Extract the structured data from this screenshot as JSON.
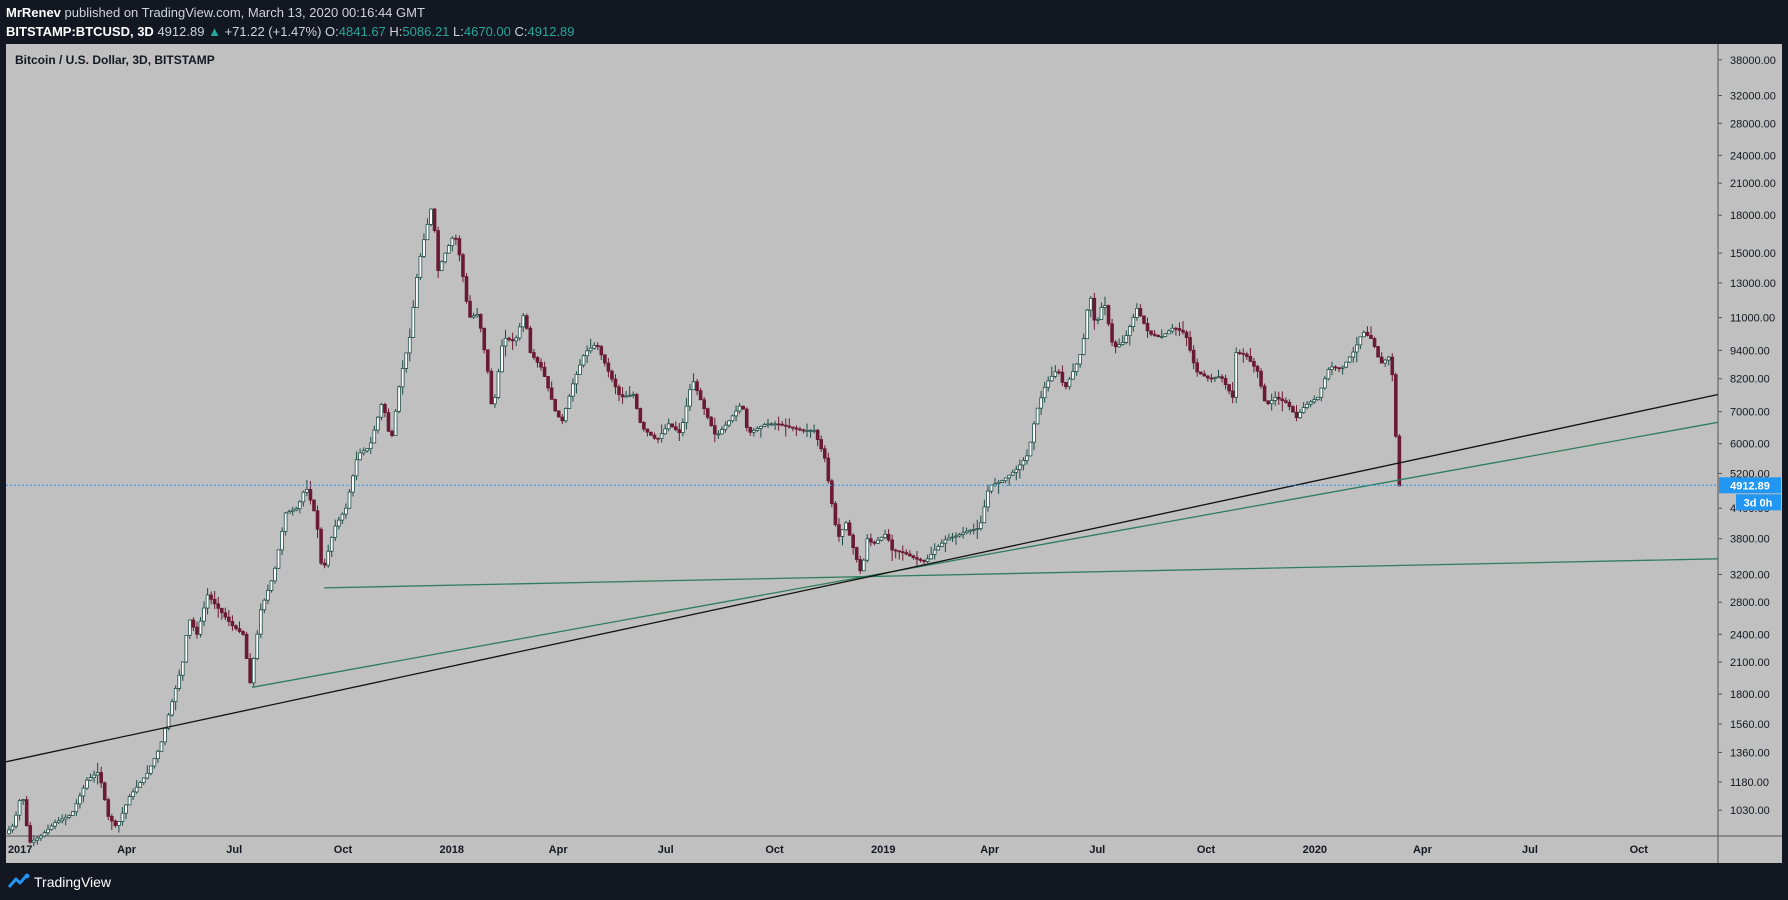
{
  "header": {
    "author": "MrRenev",
    "published_text": "published on TradingView.com, March 13, 2020 00:16:44 GMT",
    "symbol": "BITSTAMP:BTCUSD, 3D",
    "last_price": "4912.89",
    "change_arrow": "▲",
    "change": "+71.22 (+1.47%)",
    "open_label": "O:",
    "open_value": "4841.67",
    "high_label": "H:",
    "high_value": "5086.21",
    "low_label": "L:",
    "low_value": "4670.00",
    "close_label": "C:",
    "close_value": "4912.89"
  },
  "footer": {
    "brand": "TradingView",
    "brand_icon": "tradingview-logo-icon"
  },
  "colors": {
    "background": "#131722",
    "plot_background": "#c0c0c0",
    "up_candle": "#1e4d45",
    "down_candle": "#6b1a34",
    "green_line": "#2e7d5b",
    "black_line": "#111111",
    "price_line": "#2196f3",
    "price_badge": "#2196f3"
  },
  "chart_data": {
    "type": "candlestick",
    "title": "Bitcoin / U.S. Dollar, 3D, BITSTAMP",
    "y_scale": "log",
    "ylim": [
      910,
      41000
    ],
    "y_ticks": [
      1030,
      1180,
      1360,
      1560,
      1800,
      2100,
      2400,
      2800,
      3200,
      3800,
      4400,
      5200,
      6000,
      7000,
      8200,
      9400,
      11000,
      13000,
      15000,
      18000,
      21000,
      24000,
      28000,
      32000,
      38000
    ],
    "y_tick_labels": [
      "1030.00",
      "1180.00",
      "1360.00",
      "1560.00",
      "1800.00",
      "2100.00",
      "2400.00",
      "2800.00",
      "3200.00",
      "3800.00",
      "4400.00",
      "5200.00",
      "6000.00",
      "7000.00",
      "8200.00",
      "9400.00",
      "11000.00",
      "13000.00",
      "15000.00",
      "18000.00",
      "21000.00",
      "24000.00",
      "28000.00",
      "32000.00",
      "38000.00"
    ],
    "xlim": [
      "2016-12-20",
      "2020-12-07"
    ],
    "x_ticks": [
      {
        "date": "2017-01-01",
        "label": "2017",
        "bold": true
      },
      {
        "date": "2017-04-01",
        "label": "Apr",
        "bold": false
      },
      {
        "date": "2017-07-01",
        "label": "Jul",
        "bold": false
      },
      {
        "date": "2017-10-01",
        "label": "Oct",
        "bold": false
      },
      {
        "date": "2018-01-01",
        "label": "2018",
        "bold": true
      },
      {
        "date": "2018-04-01",
        "label": "Apr",
        "bold": false
      },
      {
        "date": "2018-07-01",
        "label": "Jul",
        "bold": false
      },
      {
        "date": "2018-10-01",
        "label": "Oct",
        "bold": false
      },
      {
        "date": "2019-01-01",
        "label": "2019",
        "bold": true
      },
      {
        "date": "2019-04-01",
        "label": "Apr",
        "bold": false
      },
      {
        "date": "2019-07-01",
        "label": "Jul",
        "bold": false
      },
      {
        "date": "2019-10-01",
        "label": "Oct",
        "bold": false
      },
      {
        "date": "2020-01-01",
        "label": "2020",
        "bold": true
      },
      {
        "date": "2020-04-01",
        "label": "Apr",
        "bold": false
      },
      {
        "date": "2020-07-01",
        "label": "Jul",
        "bold": false
      },
      {
        "date": "2020-10-01",
        "label": "Oct",
        "bold": false
      }
    ],
    "price_path": [
      [
        "2016-12-21",
        920
      ],
      [
        "2016-12-28",
        960
      ],
      [
        "2017-01-04",
        1130
      ],
      [
        "2017-01-10",
        880
      ],
      [
        "2017-01-20",
        910
      ],
      [
        "2017-02-01",
        970
      ],
      [
        "2017-02-15",
        1010
      ],
      [
        "2017-02-28",
        1190
      ],
      [
        "2017-03-10",
        1240
      ],
      [
        "2017-03-18",
        1000
      ],
      [
        "2017-03-25",
        950
      ],
      [
        "2017-04-05",
        1100
      ],
      [
        "2017-04-20",
        1230
      ],
      [
        "2017-05-01",
        1400
      ],
      [
        "2017-05-10",
        1700
      ],
      [
        "2017-05-20",
        2100
      ],
      [
        "2017-05-25",
        2600
      ],
      [
        "2017-06-01",
        2400
      ],
      [
        "2017-06-10",
        2900
      ],
      [
        "2017-06-20",
        2700
      ],
      [
        "2017-07-01",
        2500
      ],
      [
        "2017-07-10",
        2400
      ],
      [
        "2017-07-16",
        1900
      ],
      [
        "2017-07-25",
        2700
      ],
      [
        "2017-08-05",
        3200
      ],
      [
        "2017-08-15",
        4300
      ],
      [
        "2017-08-25",
        4400
      ],
      [
        "2017-09-01",
        4900
      ],
      [
        "2017-09-10",
        4200
      ],
      [
        "2017-09-15",
        3200
      ],
      [
        "2017-09-25",
        4000
      ],
      [
        "2017-10-05",
        4400
      ],
      [
        "2017-10-15",
        5700
      ],
      [
        "2017-10-25",
        5900
      ],
      [
        "2017-11-05",
        7400
      ],
      [
        "2017-11-12",
        6000
      ],
      [
        "2017-11-20",
        8200
      ],
      [
        "2017-11-28",
        10000
      ],
      [
        "2017-12-05",
        14000
      ],
      [
        "2017-12-10",
        16000
      ],
      [
        "2017-12-17",
        19000
      ],
      [
        "2017-12-22",
        13800
      ],
      [
        "2017-12-28",
        15000
      ],
      [
        "2018-01-05",
        16500
      ],
      [
        "2018-01-10",
        14500
      ],
      [
        "2018-01-17",
        11000
      ],
      [
        "2018-01-25",
        11200
      ],
      [
        "2018-02-02",
        8500
      ],
      [
        "2018-02-06",
        6900
      ],
      [
        "2018-02-15",
        10000
      ],
      [
        "2018-02-25",
        9800
      ],
      [
        "2018-03-05",
        11300
      ],
      [
        "2018-03-10",
        9300
      ],
      [
        "2018-03-20",
        8600
      ],
      [
        "2018-04-01",
        6900
      ],
      [
        "2018-04-06",
        6700
      ],
      [
        "2018-04-15",
        8000
      ],
      [
        "2018-04-25",
        9300
      ],
      [
        "2018-05-05",
        9700
      ],
      [
        "2018-05-15",
        8500
      ],
      [
        "2018-05-25",
        7500
      ],
      [
        "2018-06-05",
        7600
      ],
      [
        "2018-06-12",
        6500
      ],
      [
        "2018-06-25",
        6100
      ],
      [
        "2018-07-05",
        6600
      ],
      [
        "2018-07-15",
        6300
      ],
      [
        "2018-07-25",
        8200
      ],
      [
        "2018-08-05",
        7000
      ],
      [
        "2018-08-14",
        6200
      ],
      [
        "2018-08-25",
        6700
      ],
      [
        "2018-09-05",
        7300
      ],
      [
        "2018-09-10",
        6300
      ],
      [
        "2018-09-25",
        6600
      ],
      [
        "2018-10-05",
        6600
      ],
      [
        "2018-10-15",
        6500
      ],
      [
        "2018-10-25",
        6400
      ],
      [
        "2018-11-05",
        6400
      ],
      [
        "2018-11-14",
        5600
      ],
      [
        "2018-11-20",
        4500
      ],
      [
        "2018-11-25",
        3800
      ],
      [
        "2018-12-02",
        4100
      ],
      [
        "2018-12-10",
        3500
      ],
      [
        "2018-12-15",
        3200
      ],
      [
        "2018-12-20",
        3800
      ],
      [
        "2018-12-25",
        3700
      ],
      [
        "2019-01-05",
        3900
      ],
      [
        "2019-01-10",
        3600
      ],
      [
        "2019-01-20",
        3550
      ],
      [
        "2019-01-30",
        3450
      ],
      [
        "2019-02-07",
        3400
      ],
      [
        "2019-02-15",
        3600
      ],
      [
        "2019-02-25",
        3800
      ],
      [
        "2019-03-05",
        3850
      ],
      [
        "2019-03-15",
        3950
      ],
      [
        "2019-03-25",
        4000
      ],
      [
        "2019-04-02",
        4900
      ],
      [
        "2019-04-12",
        5000
      ],
      [
        "2019-04-25",
        5300
      ],
      [
        "2019-05-05",
        5700
      ],
      [
        "2019-05-12",
        7000
      ],
      [
        "2019-05-20",
        8000
      ],
      [
        "2019-05-30",
        8600
      ],
      [
        "2019-06-05",
        7800
      ],
      [
        "2019-06-15",
        8800
      ],
      [
        "2019-06-20",
        9500
      ],
      [
        "2019-06-26",
        12500
      ],
      [
        "2019-07-01",
        10500
      ],
      [
        "2019-07-08",
        12000
      ],
      [
        "2019-07-16",
        9500
      ],
      [
        "2019-07-25",
        9800
      ],
      [
        "2019-08-05",
        11500
      ],
      [
        "2019-08-15",
        10200
      ],
      [
        "2019-08-25",
        10000
      ],
      [
        "2019-09-05",
        10500
      ],
      [
        "2019-09-15",
        10200
      ],
      [
        "2019-09-24",
        8500
      ],
      [
        "2019-10-05",
        8200
      ],
      [
        "2019-10-15",
        8300
      ],
      [
        "2019-10-25",
        7500
      ],
      [
        "2019-10-28",
        9300
      ],
      [
        "2019-11-05",
        9200
      ],
      [
        "2019-11-15",
        8500
      ],
      [
        "2019-11-22",
        7200
      ],
      [
        "2019-11-30",
        7500
      ],
      [
        "2019-12-10",
        7300
      ],
      [
        "2019-12-18",
        6800
      ],
      [
        "2019-12-25",
        7200
      ],
      [
        "2020-01-05",
        7500
      ],
      [
        "2020-01-15",
        8700
      ],
      [
        "2020-01-25",
        8600
      ],
      [
        "2020-02-05",
        9400
      ],
      [
        "2020-02-12",
        10300
      ],
      [
        "2020-02-20",
        9900
      ],
      [
        "2020-02-27",
        8800
      ],
      [
        "2020-03-05",
        9100
      ],
      [
        "2020-03-10",
        7900
      ],
      [
        "2020-03-12",
        4900
      ]
    ],
    "trend_lines": [
      {
        "color": "green",
        "start": [
          "2017-09-15",
          3000
        ],
        "end": [
          "2020-12-07",
          3450
        ]
      },
      {
        "color": "green",
        "start": [
          "2017-07-16",
          1860
        ],
        "end": [
          "2020-12-07",
          6650
        ]
      },
      {
        "color": "black",
        "start": [
          "2016-12-20",
          1300
        ],
        "end": [
          "2020-12-07",
          7600
        ]
      }
    ],
    "current_price": 4912.89,
    "current_price_label": "4912.89",
    "countdown_label": "3d 0h"
  }
}
